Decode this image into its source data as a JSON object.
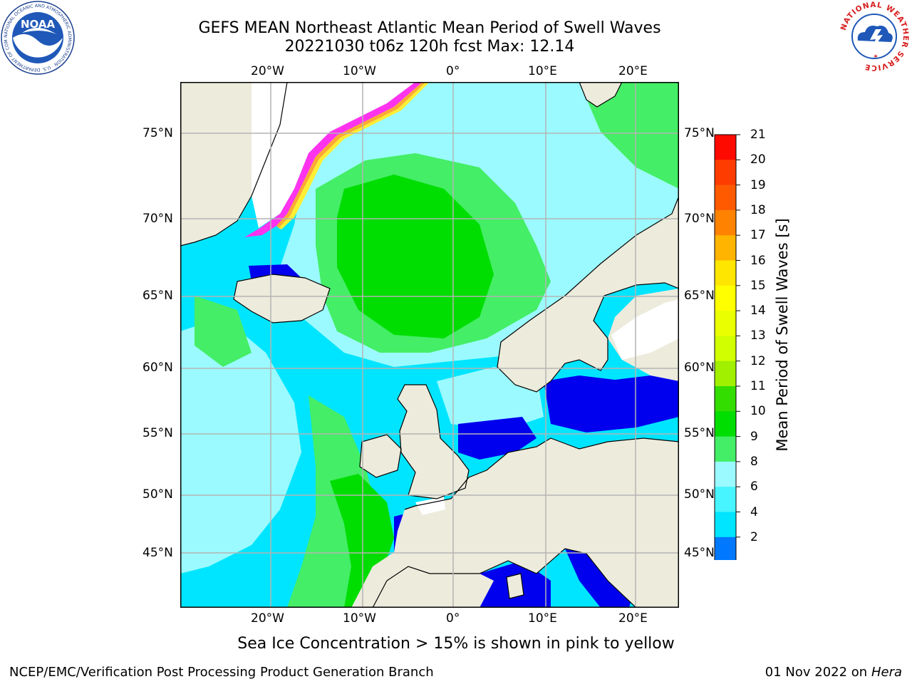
{
  "header": {
    "title": "GEFS MEAN Northeast Atlantic Mean Period of Swell Waves",
    "subtitle": "20221030 t06z 120h fcst   Max: 12.14"
  },
  "logos": {
    "noaa": {
      "text": "NOAA",
      "ring_text": "NATIONAL OCEANIC AND ATMOSPHERIC ADMINISTRATION · U.S. DEPARTMENT OF COMMERCE ·",
      "color": "#1c3f8f"
    },
    "nws": {
      "ring_text": "NATIONAL WEATHER SERVICE",
      "color": "#d82020"
    }
  },
  "map": {
    "top_lon_labels": [
      "20°W",
      "10°W",
      "0°",
      "10°E",
      "20°E"
    ],
    "bottom_lon_labels": [
      "20°W",
      "10°W",
      "0°",
      "10°E",
      "20°E"
    ],
    "left_lat_labels": [
      "75°N",
      "70°N",
      "65°N",
      "60°N",
      "55°N",
      "50°N",
      "45°N"
    ],
    "right_lat_labels": [
      "75°N",
      "70°N",
      "65°N",
      "60°N",
      "55°N",
      "50°N",
      "45°N"
    ],
    "colors": {
      "ocean_cyan": "#00e5ff",
      "ocean_light": "#9bfaff",
      "green_light": "#44ee66",
      "green": "#00dd00",
      "blue": "#0000ee",
      "land": "#ecebdc",
      "ice_white": "#ffffff",
      "ice_pink": "#ff33ee",
      "ice_orange": "#ffaa33",
      "ice_yellow": "#ffee33",
      "grid": "#b4b4b4"
    }
  },
  "colorbar": {
    "label": "Mean Period of Swell Waves [s]",
    "ticks": [
      "21",
      "20",
      "19",
      "18",
      "17",
      "16",
      "15",
      "14",
      "13",
      "12",
      "11",
      "10",
      "9",
      "8",
      "6",
      "4",
      "2"
    ],
    "colors": [
      "#ff0a00",
      "#ff3c00",
      "#ff5a00",
      "#ff8200",
      "#ffb400",
      "#ffe600",
      "#ffff00",
      "#eaff00",
      "#d2ff00",
      "#a0f000",
      "#34dd00",
      "#00dd00",
      "#44ee66",
      "#9bfaff",
      "#46f5ff",
      "#00e5ff",
      "#0078ff",
      "#0000ee"
    ]
  },
  "caption": "Sea Ice Concentration > 15% is shown in pink to yellow",
  "footer": {
    "org": "NCEP/EMC/Verification Post Processing Product Generation Branch",
    "date": "01 Nov 2022 on",
    "machine": "Hera"
  }
}
